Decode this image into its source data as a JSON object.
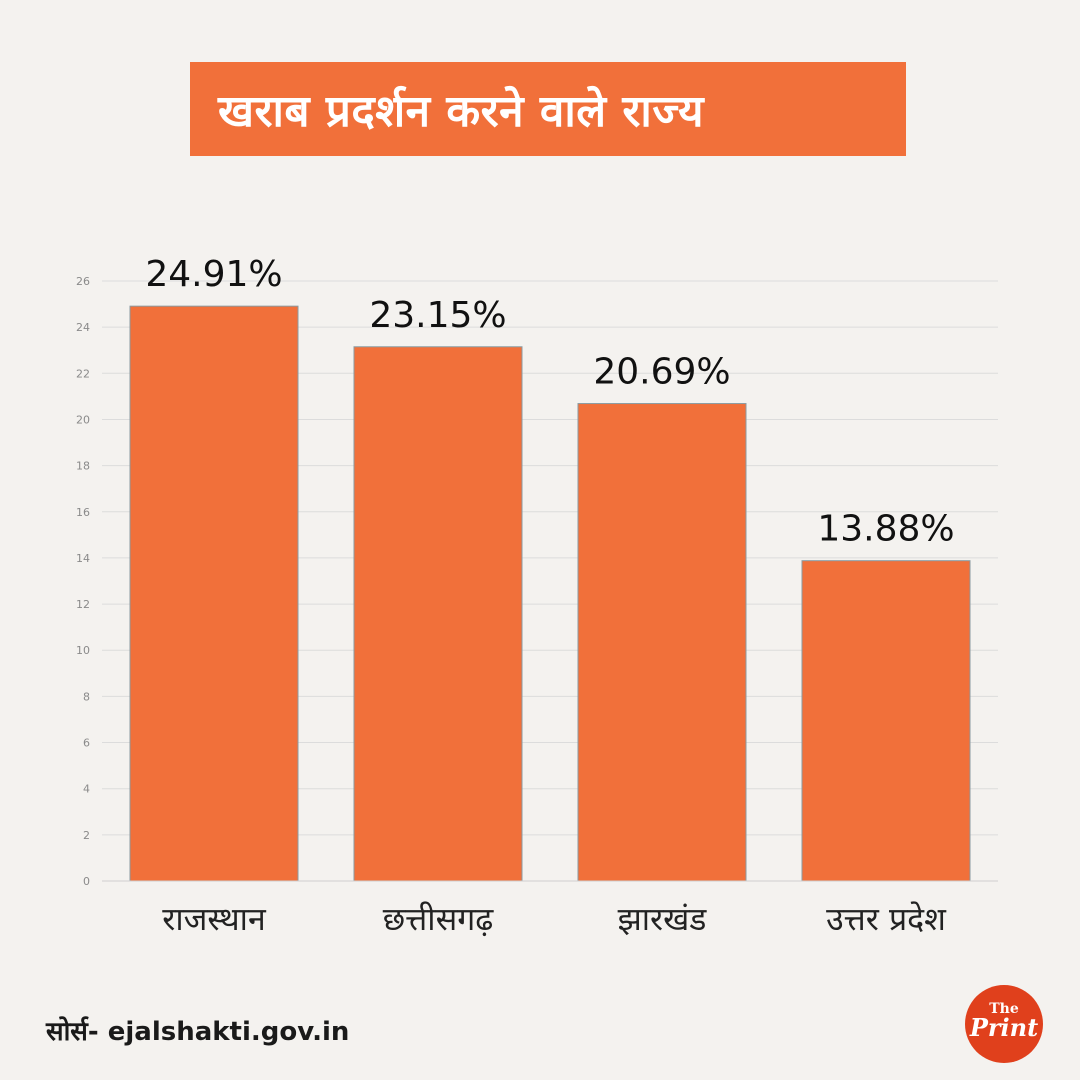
{
  "title": "खराब प्रदर्शन करने वाले राज्य",
  "source": "सोर्स- ejalshakti.gov.in",
  "logo": {
    "line1": "The",
    "line2": "Print"
  },
  "colors": {
    "bar": "#f1703a",
    "title_bg": "#f1703a",
    "logo": "#e0401c"
  },
  "chart_data": {
    "type": "bar",
    "categories": [
      "राजस्थान",
      "छत्तीसगढ़",
      "झारखंड",
      "उत्तर प्रदेश"
    ],
    "values": [
      24.91,
      23.15,
      20.69,
      13.88
    ],
    "data_labels": [
      "24.91%",
      "23.15%",
      "20.69%",
      "13.88%"
    ],
    "yticks": [
      "0",
      "2",
      "4",
      "6",
      "8",
      "10",
      "12",
      "14",
      "16",
      "18",
      "20",
      "22",
      "24",
      "26"
    ],
    "ylim": [
      0,
      26
    ],
    "grid": true
  }
}
